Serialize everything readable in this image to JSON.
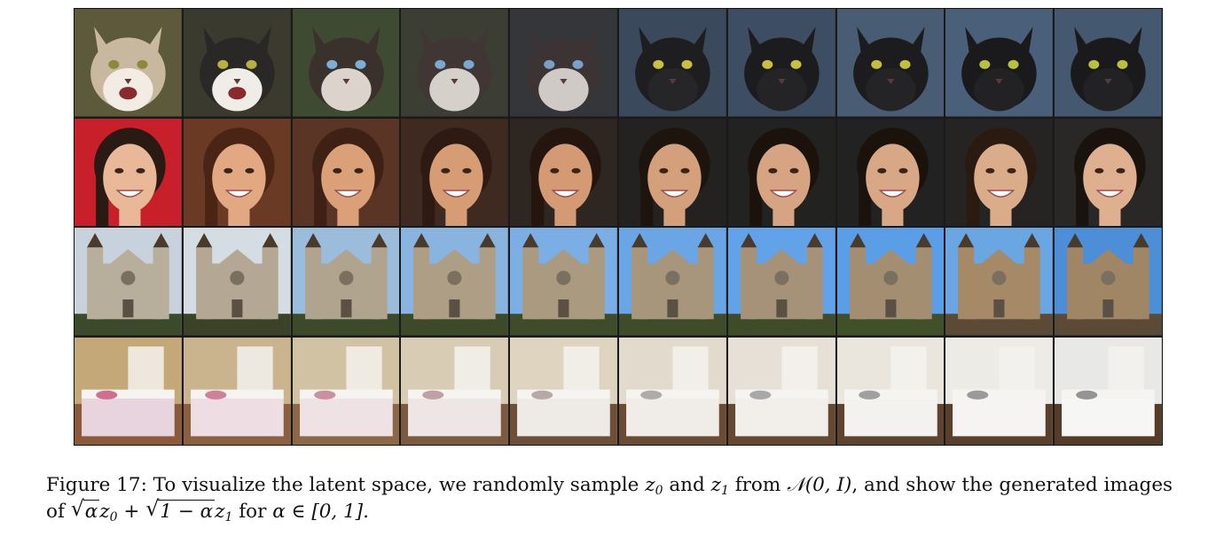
{
  "figure": {
    "rows": [
      {
        "label": "cats",
        "cells": [
          {
            "bg": "#5c5a3a",
            "subject": "#c9b8a0",
            "accent": "#f2ece4",
            "eye": "#8a8a3a",
            "mouth": true
          },
          {
            "bg": "#3a3a2e",
            "subject": "#2a2826",
            "accent": "#f0ece8",
            "eye": "#b8b040",
            "mouth": true
          },
          {
            "bg": "#3e4a32",
            "subject": "#3a302c",
            "accent": "#dcd4cc",
            "eye": "#7ab0d8",
            "mouth": false
          },
          {
            "bg": "#3c3e34",
            "subject": "#403634",
            "accent": "#d6d0ca",
            "eye": "#7aa8d0",
            "mouth": false
          },
          {
            "bg": "#34363a",
            "subject": "#3c3434",
            "accent": "#d0cac6",
            "eye": "#7aa0c8",
            "mouth": false
          },
          {
            "bg": "#3a4a5c",
            "subject": "#1e1e20",
            "accent": "#262628",
            "eye": "#c8c040",
            "mouth": false
          },
          {
            "bg": "#3e4e62",
            "subject": "#1c1c1e",
            "accent": "#242426",
            "eye": "#c8c040",
            "mouth": false
          },
          {
            "bg": "#485c74",
            "subject": "#1c1c1e",
            "accent": "#242426",
            "eye": "#c0c040",
            "mouth": false
          },
          {
            "bg": "#4a607a",
            "subject": "#1a1a1c",
            "accent": "#222224",
            "eye": "#b8c040",
            "mouth": false
          },
          {
            "bg": "#445870",
            "subject": "#1a1a1c",
            "accent": "#222224",
            "eye": "#b8c040",
            "mouth": false
          }
        ]
      },
      {
        "label": "faces",
        "cells": [
          {
            "bg": "#c8202a",
            "subject": "#e8b898",
            "accent": "#2a1a14",
            "eye": "#3a2418",
            "mouth": true
          },
          {
            "bg": "#6a3a24",
            "subject": "#e2a882",
            "accent": "#4a2414",
            "eye": "#3a2418",
            "mouth": true
          },
          {
            "bg": "#5a3424",
            "subject": "#dca078",
            "accent": "#3e2014",
            "eye": "#3a2418",
            "mouth": true
          },
          {
            "bg": "#3e2a20",
            "subject": "#d69c74",
            "accent": "#2e1a12",
            "eye": "#3a2418",
            "mouth": true
          },
          {
            "bg": "#2e2620",
            "subject": "#d49a74",
            "accent": "#24160e",
            "eye": "#3a2418",
            "mouth": true
          },
          {
            "bg": "#242220",
            "subject": "#d4a07c",
            "accent": "#1e140e",
            "eye": "#3a2418",
            "mouth": true
          },
          {
            "bg": "#222220",
            "subject": "#d6a482",
            "accent": "#1c120c",
            "eye": "#3a2418",
            "mouth": true
          },
          {
            "bg": "#222222",
            "subject": "#d8a886",
            "accent": "#1c120c",
            "eye": "#3a2418",
            "mouth": true
          },
          {
            "bg": "#262422",
            "subject": "#daac8a",
            "accent": "#2a1a10",
            "eye": "#3a2418",
            "mouth": true
          },
          {
            "bg": "#2a2826",
            "subject": "#deb090",
            "accent": "#1a120c",
            "eye": "#3a2418",
            "mouth": true
          }
        ]
      },
      {
        "label": "churches",
        "cells": [
          {
            "bg": "#c8d2dc",
            "subject": "#b8ae9c",
            "accent": "#3a4a2a",
            "eye": "#4a3a2a",
            "mouth": false
          },
          {
            "bg": "#d4dce4",
            "subject": "#b4a894",
            "accent": "#3a4228",
            "eye": "#4a3a2a",
            "mouth": false
          },
          {
            "bg": "#9cbcdc",
            "subject": "#b0a48e",
            "accent": "#3c4a2a",
            "eye": "#4a3a2a",
            "mouth": false
          },
          {
            "bg": "#8ab4e0",
            "subject": "#ae9e86",
            "accent": "#3c4a2a",
            "eye": "#4a3a2a",
            "mouth": false
          },
          {
            "bg": "#7aaee4",
            "subject": "#aa9a80",
            "accent": "#3e4c2a",
            "eye": "#4a3a2a",
            "mouth": false
          },
          {
            "bg": "#6aa6e6",
            "subject": "#a8967c",
            "accent": "#3e4c2a",
            "eye": "#4a3a2a",
            "mouth": false
          },
          {
            "bg": "#62a2e8",
            "subject": "#a69278",
            "accent": "#3e4c2a",
            "eye": "#4a3a2a",
            "mouth": false
          },
          {
            "bg": "#5a9ee8",
            "subject": "#a48e72",
            "accent": "#405028",
            "eye": "#4a3a2a",
            "mouth": false
          },
          {
            "bg": "#6aa6e2",
            "subject": "#a68a68",
            "accent": "#5a4a36",
            "eye": "#4a3a2a",
            "mouth": false
          },
          {
            "bg": "#4c8ed8",
            "subject": "#a08664",
            "accent": "#5a4a36",
            "eye": "#4a3a2a",
            "mouth": false
          }
        ]
      },
      {
        "label": "bedrooms",
        "cells": [
          {
            "bg": "#c4a878",
            "subject": "#e8d4dc",
            "accent": "#8a5a3a",
            "eye": "#d07090",
            "mouth": false
          },
          {
            "bg": "#cab48e",
            "subject": "#eedee4",
            "accent": "#8a6040",
            "eye": "#d08098",
            "mouth": false
          },
          {
            "bg": "#d2c2a4",
            "subject": "#eee2e4",
            "accent": "#8a6848",
            "eye": "#c890a0",
            "mouth": false
          },
          {
            "bg": "#d8ccb4",
            "subject": "#eee6e4",
            "accent": "#7a5a40",
            "eye": "#c0a0a8",
            "mouth": false
          },
          {
            "bg": "#ded4c0",
            "subject": "#eeeae6",
            "accent": "#6e5038",
            "eye": "#b8a8a8",
            "mouth": false
          },
          {
            "bg": "#e2dacc",
            "subject": "#f0ece8",
            "accent": "#6a4c34",
            "eye": "#b0aaa8",
            "mouth": false
          },
          {
            "bg": "#e6e0d6",
            "subject": "#f2eeea",
            "accent": "#644830",
            "eye": "#a8a8a8",
            "mouth": false
          },
          {
            "bg": "#eae6de",
            "subject": "#f4f2ee",
            "accent": "#5e4430",
            "eye": "#a0a0a0",
            "mouth": false
          },
          {
            "bg": "#ecebe6",
            "subject": "#f6f4f2",
            "accent": "#58402c",
            "eye": "#9a9a9a",
            "mouth": false
          },
          {
            "bg": "#e8e8e6",
            "subject": "#f6f6f4",
            "accent": "#543c28",
            "eye": "#949494",
            "mouth": false
          }
        ]
      }
    ]
  },
  "caption": {
    "prefix": "Figure 17: To visualize the latent space, we randomly sample ",
    "z0": "z",
    "sub0": "0",
    "and": " and ",
    "z1": "z",
    "sub1": "1",
    "from": " from ",
    "dist": "𝒩(0, I)",
    "mid": ", and show the generated images",
    "of": "of ",
    "sqrt_a": "α",
    "z0b": "z",
    "sub0b": "0",
    "plus": " + ",
    "sqrt_b": "1 − α",
    "z1b": "z",
    "sub1b": "1",
    "for": " for ",
    "range": "α ∈ [0, 1]."
  }
}
